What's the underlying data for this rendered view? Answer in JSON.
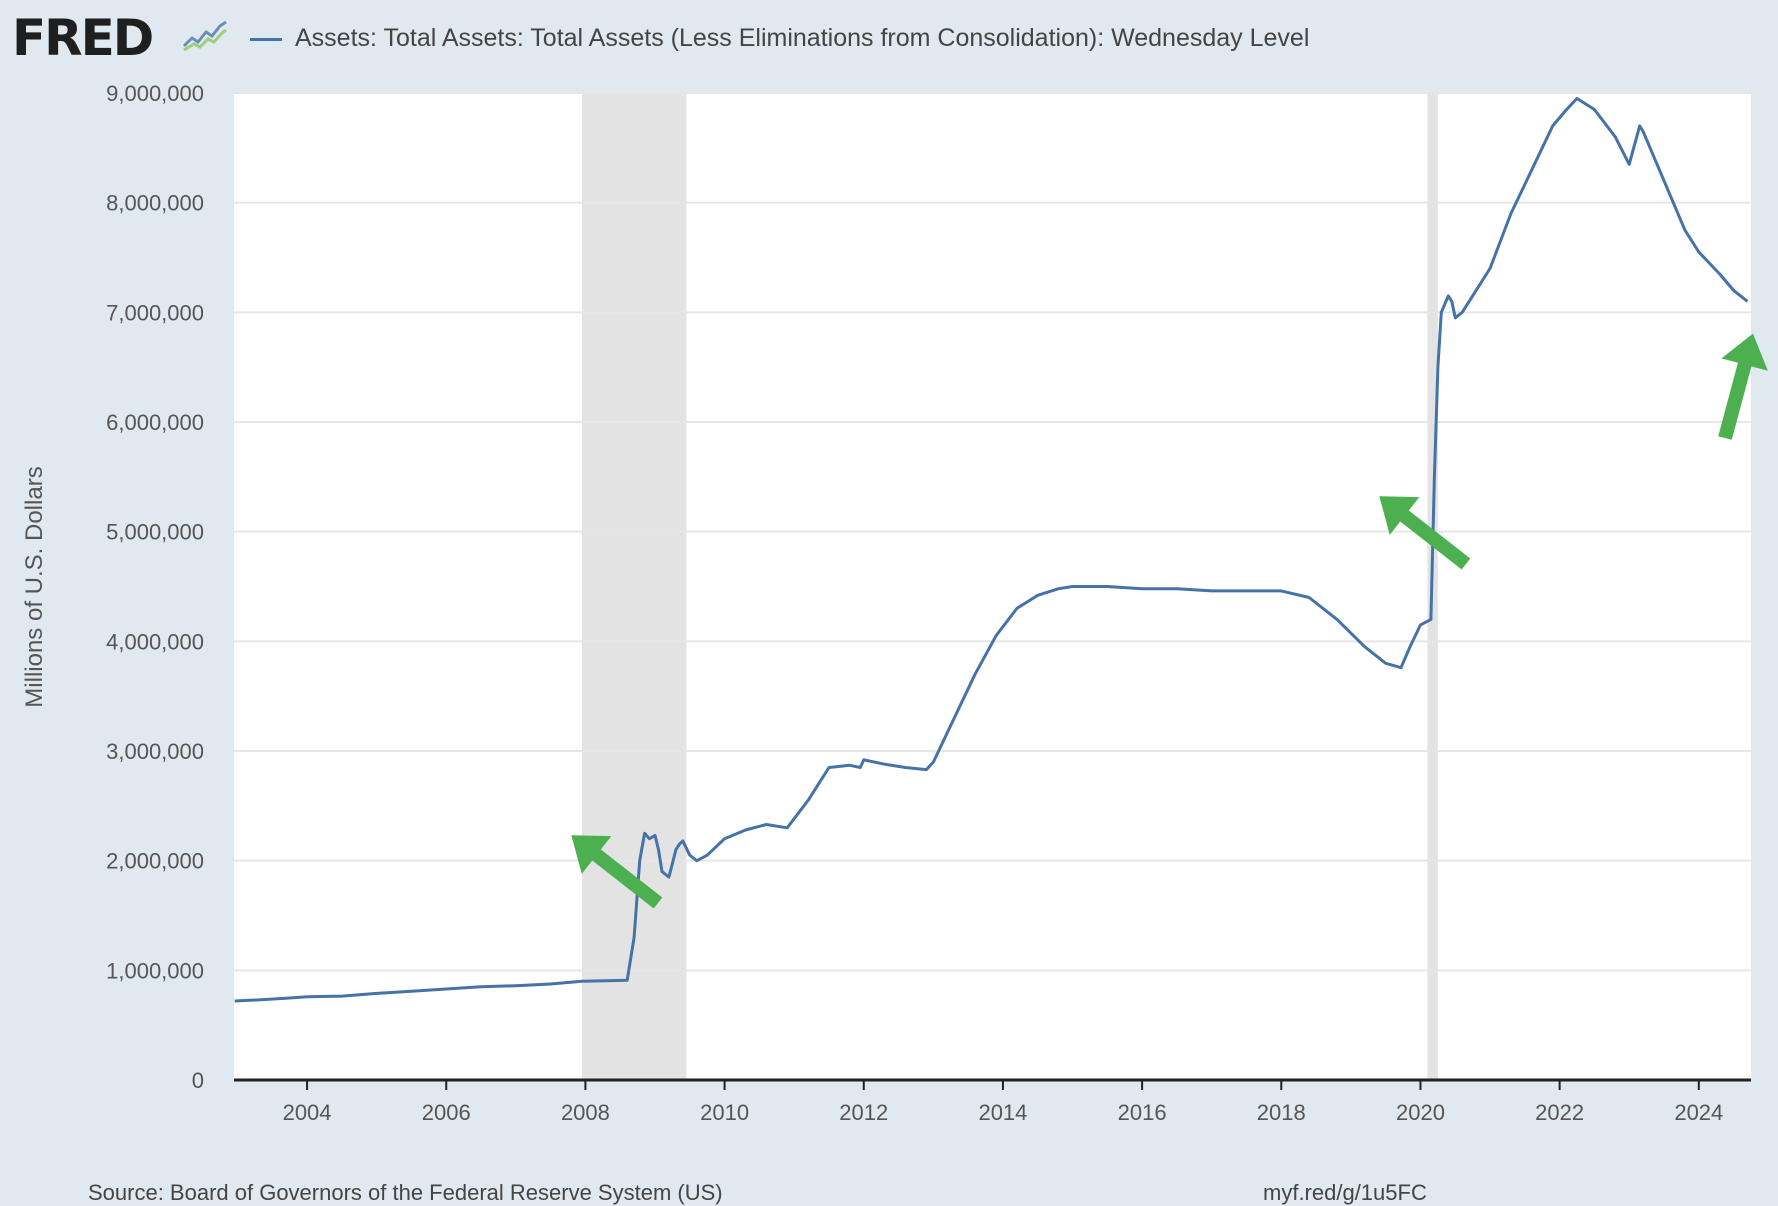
{
  "header": {
    "logo_text": "FRED",
    "title": "Assets: Total Assets: Total Assets (Less Eliminations from Consolidation): Wednesday Level"
  },
  "footer": {
    "source": "Source: Board of Governors of the Federal Reserve System (US)",
    "url": "myf.red/g/1u5FC"
  },
  "colors": {
    "line": "#4572a7",
    "recession": "#e3e3e3",
    "arrow": "#4caf50",
    "background": "#e1e9f0"
  },
  "chart_data": {
    "type": "line",
    "title": "Assets: Total Assets: Total Assets (Less Eliminations from Consolidation): Wednesday Level",
    "ylabel": "Millions of U.S. Dollars",
    "xlabel": "",
    "xlim": [
      2002.95,
      2024.75
    ],
    "ylim": [
      0,
      9000000
    ],
    "x_ticks": [
      {
        "value": 2004,
        "label": "2004"
      },
      {
        "value": 2006,
        "label": "2006"
      },
      {
        "value": 2008,
        "label": "2008"
      },
      {
        "value": 2010,
        "label": "2010"
      },
      {
        "value": 2012,
        "label": "2012"
      },
      {
        "value": 2014,
        "label": "2014"
      },
      {
        "value": 2016,
        "label": "2016"
      },
      {
        "value": 2018,
        "label": "2018"
      },
      {
        "value": 2020,
        "label": "2020"
      },
      {
        "value": 2022,
        "label": "2022"
      },
      {
        "value": 2024,
        "label": "2024"
      }
    ],
    "y_ticks": [
      {
        "value": 0,
        "label": "0"
      },
      {
        "value": 1000000,
        "label": "1,000,000"
      },
      {
        "value": 2000000,
        "label": "2,000,000"
      },
      {
        "value": 3000000,
        "label": "3,000,000"
      },
      {
        "value": 4000000,
        "label": "4,000,000"
      },
      {
        "value": 5000000,
        "label": "5,000,000"
      },
      {
        "value": 6000000,
        "label": "6,000,000"
      },
      {
        "value": 7000000,
        "label": "7,000,000"
      },
      {
        "value": 8000000,
        "label": "8,000,000"
      },
      {
        "value": 9000000,
        "label": "9,000,000"
      }
    ],
    "grid": true,
    "recessions": [
      [
        2007.95,
        2009.45
      ],
      [
        2020.1,
        2020.25
      ]
    ],
    "series": [
      {
        "name": "Assets: Total Assets: Total Assets (Less Eliminations from Consolidation): Wednesday Level",
        "x": [
          2002.96,
          2003.3,
          2003.7,
          2004.0,
          2004.5,
          2005.0,
          2005.5,
          2006.0,
          2006.5,
          2007.0,
          2007.5,
          2007.95,
          2008.3,
          2008.6,
          2008.7,
          2008.78,
          2008.85,
          2008.92,
          2009.0,
          2009.05,
          2009.1,
          2009.2,
          2009.3,
          2009.35,
          2009.4,
          2009.5,
          2009.6,
          2009.75,
          2010.0,
          2010.3,
          2010.6,
          2010.9,
          2011.2,
          2011.5,
          2011.8,
          2011.95,
          2012.0,
          2012.3,
          2012.6,
          2012.9,
          2013.0,
          2013.3,
          2013.6,
          2013.9,
          2014.2,
          2014.5,
          2014.8,
          2015.0,
          2015.5,
          2016.0,
          2016.5,
          2017.0,
          2017.5,
          2018.0,
          2018.4,
          2018.8,
          2019.2,
          2019.5,
          2019.72,
          2019.85,
          2020.0,
          2020.15,
          2020.2,
          2020.25,
          2020.3,
          2020.4,
          2020.45,
          2020.5,
          2020.6,
          2020.8,
          2021.0,
          2021.3,
          2021.6,
          2021.9,
          2022.1,
          2022.25,
          2022.5,
          2022.8,
          2023.0,
          2023.15,
          2023.2,
          2023.5,
          2023.8,
          2024.0,
          2024.3,
          2024.5,
          2024.7
        ],
        "values": [
          720000,
          730000,
          745000,
          760000,
          765000,
          790000,
          810000,
          830000,
          850000,
          860000,
          875000,
          900000,
          905000,
          910000,
          1300000,
          2000000,
          2250000,
          2200000,
          2230000,
          2100000,
          1900000,
          1850000,
          2100000,
          2150000,
          2180000,
          2050000,
          2000000,
          2050000,
          2200000,
          2280000,
          2330000,
          2300000,
          2550000,
          2850000,
          2870000,
          2850000,
          2920000,
          2880000,
          2850000,
          2830000,
          2900000,
          3300000,
          3700000,
          4050000,
          4300000,
          4420000,
          4480000,
          4500000,
          4500000,
          4480000,
          4480000,
          4460000,
          4460000,
          4460000,
          4400000,
          4200000,
          3950000,
          3800000,
          3760000,
          3950000,
          4150000,
          4200000,
          5500000,
          6500000,
          7000000,
          7150000,
          7100000,
          6950000,
          7000000,
          7200000,
          7400000,
          7900000,
          8300000,
          8700000,
          8850000,
          8950000,
          8850000,
          8600000,
          8350000,
          8700000,
          8650000,
          8200000,
          7750000,
          7550000,
          7350000,
          7200000,
          7100000
        ]
      }
    ]
  }
}
